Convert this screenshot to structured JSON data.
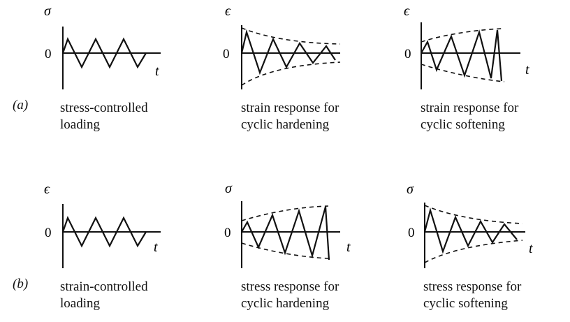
{
  "figure": {
    "rows": [
      {
        "tag": "(a)",
        "panels": [
          {
            "ylabel": "σ",
            "zero": "0",
            "tlabel": "t",
            "caption": [
              "stress-controlled",
              "loading"
            ]
          },
          {
            "ylabel": "ϵ",
            "zero": "0",
            "tlabel": "t",
            "caption": [
              "strain response for",
              "cyclic hardening"
            ]
          },
          {
            "ylabel": "ϵ",
            "zero": "0",
            "tlabel": "t",
            "caption": [
              "strain response for",
              "cyclic softening"
            ]
          }
        ]
      },
      {
        "tag": "(b)",
        "panels": [
          {
            "ylabel": "ϵ",
            "zero": "0",
            "tlabel": "t",
            "caption": [
              "strain-controlled",
              "loading"
            ]
          },
          {
            "ylabel": "σ",
            "zero": "0",
            "tlabel": "t",
            "caption": [
              "stress response for",
              "cyclic hardening"
            ]
          },
          {
            "ylabel": "σ",
            "zero": "0",
            "tlabel": "t",
            "caption": [
              "stress response for",
              "cyclic softening"
            ]
          }
        ]
      }
    ]
  }
}
